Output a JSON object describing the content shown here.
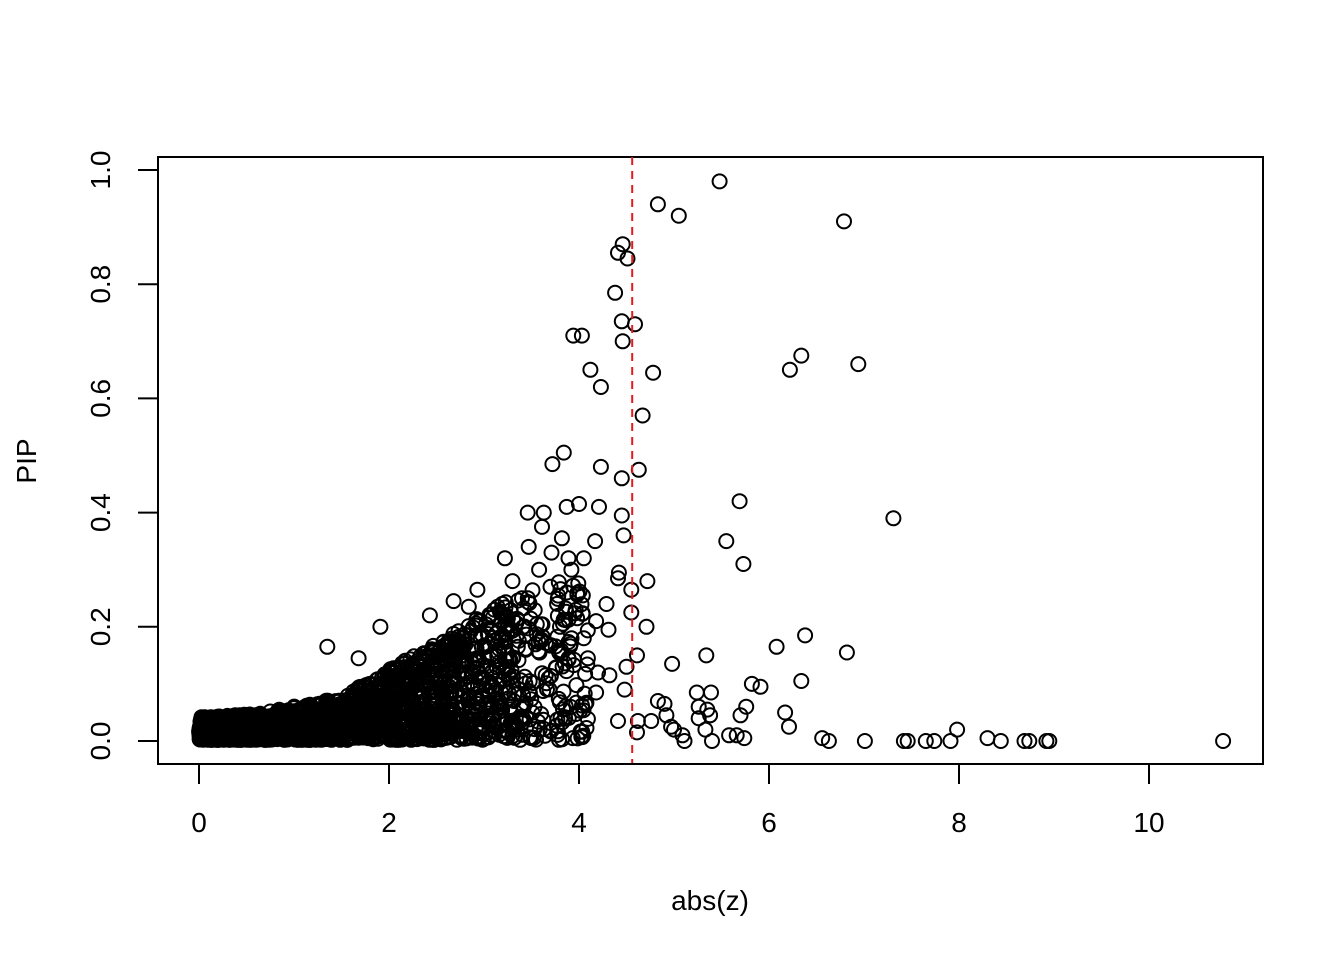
{
  "chart_data": {
    "type": "scatter",
    "title": "",
    "xlabel": "abs(z)",
    "ylabel": "PIP",
    "xlim": [
      -0.4,
      11.2
    ],
    "ylim": [
      -0.04,
      1.02
    ],
    "x_ticks": [
      0,
      2,
      4,
      6,
      8,
      10
    ],
    "x_tick_labels": [
      "0",
      "2",
      "4",
      "6",
      "8",
      "10"
    ],
    "y_ticks": [
      0.0,
      0.2,
      0.4,
      0.6,
      0.8,
      1.0
    ],
    "y_tick_labels": [
      "0.0",
      "0.2",
      "0.4",
      "0.6",
      "0.8",
      "1.0"
    ],
    "grid": false,
    "marker": "open-circle",
    "point_color": "#000000",
    "reference_line": {
      "orientation": "vertical",
      "x": 4.56,
      "style": "dashed",
      "color": "#e41a1c"
    },
    "series": [
      {
        "points": [
          [
            5.48,
            0.98
          ],
          [
            4.83,
            0.94
          ],
          [
            5.05,
            0.92
          ],
          [
            6.79,
            0.91
          ],
          [
            4.46,
            0.87
          ],
          [
            4.41,
            0.855
          ],
          [
            4.51,
            0.845
          ],
          [
            4.38,
            0.785
          ],
          [
            4.45,
            0.735
          ],
          [
            4.59,
            0.73
          ],
          [
            3.94,
            0.71
          ],
          [
            4.03,
            0.71
          ],
          [
            4.46,
            0.7
          ],
          [
            6.34,
            0.675
          ],
          [
            6.94,
            0.66
          ],
          [
            4.12,
            0.65
          ],
          [
            6.22,
            0.65
          ],
          [
            4.78,
            0.645
          ],
          [
            4.23,
            0.62
          ],
          [
            4.67,
            0.57
          ],
          [
            3.84,
            0.505
          ],
          [
            3.72,
            0.485
          ],
          [
            4.23,
            0.48
          ],
          [
            4.63,
            0.475
          ],
          [
            4.45,
            0.46
          ],
          [
            5.69,
            0.42
          ],
          [
            3.87,
            0.41
          ],
          [
            4.0,
            0.415
          ],
          [
            4.21,
            0.41
          ],
          [
            3.46,
            0.4
          ],
          [
            3.63,
            0.4
          ],
          [
            4.45,
            0.395
          ],
          [
            7.31,
            0.39
          ],
          [
            3.61,
            0.375
          ],
          [
            4.47,
            0.36
          ],
          [
            3.82,
            0.355
          ],
          [
            4.17,
            0.35
          ],
          [
            5.55,
            0.35
          ],
          [
            3.47,
            0.34
          ],
          [
            3.71,
            0.33
          ],
          [
            3.89,
            0.32
          ],
          [
            4.05,
            0.32
          ],
          [
            3.22,
            0.32
          ],
          [
            5.73,
            0.31
          ],
          [
            3.58,
            0.3
          ],
          [
            3.92,
            0.3
          ],
          [
            4.42,
            0.295
          ],
          [
            3.3,
            0.28
          ],
          [
            4.41,
            0.285
          ],
          [
            4.72,
            0.28
          ],
          [
            3.7,
            0.27
          ],
          [
            2.93,
            0.265
          ],
          [
            4.55,
            0.265
          ],
          [
            3.87,
            0.26
          ],
          [
            4.04,
            0.255
          ],
          [
            3.4,
            0.25
          ],
          [
            2.68,
            0.245
          ],
          [
            4.29,
            0.24
          ],
          [
            2.84,
            0.235
          ],
          [
            3.11,
            0.23
          ],
          [
            4.55,
            0.225
          ],
          [
            2.43,
            0.22
          ],
          [
            3.98,
            0.215
          ],
          [
            4.18,
            0.21
          ],
          [
            4.71,
            0.2
          ],
          [
            1.91,
            0.2
          ],
          [
            3.8,
            0.2
          ],
          [
            4.31,
            0.195
          ],
          [
            6.38,
            0.185
          ],
          [
            4.05,
            0.18
          ],
          [
            3.6,
            0.175
          ],
          [
            1.35,
            0.165
          ],
          [
            6.08,
            0.165
          ],
          [
            6.82,
            0.155
          ],
          [
            4.61,
            0.15
          ],
          [
            5.34,
            0.15
          ],
          [
            1.68,
            0.145
          ],
          [
            3.89,
            0.145
          ],
          [
            4.98,
            0.135
          ],
          [
            4.5,
            0.13
          ],
          [
            4.2,
            0.12
          ],
          [
            4.32,
            0.115
          ],
          [
            6.34,
            0.105
          ],
          [
            3.68,
            0.11
          ],
          [
            5.82,
            0.1
          ],
          [
            5.91,
            0.095
          ],
          [
            4.18,
            0.085
          ],
          [
            5.24,
            0.085
          ],
          [
            5.39,
            0.085
          ],
          [
            4.48,
            0.09
          ],
          [
            4.83,
            0.07
          ],
          [
            4.9,
            0.065
          ],
          [
            5.26,
            0.06
          ],
          [
            5.76,
            0.06
          ],
          [
            6.17,
            0.05
          ],
          [
            5.35,
            0.055
          ],
          [
            5.38,
            0.045
          ],
          [
            4.92,
            0.045
          ],
          [
            5.26,
            0.04
          ],
          [
            4.62,
            0.035
          ],
          [
            4.76,
            0.035
          ],
          [
            4.41,
            0.035
          ],
          [
            6.21,
            0.025
          ],
          [
            4.97,
            0.025
          ],
          [
            5.0,
            0.02
          ],
          [
            5.33,
            0.02
          ],
          [
            5.7,
            0.045
          ],
          [
            7.98,
            0.02
          ],
          [
            4.61,
            0.015
          ],
          [
            5.09,
            0.01
          ],
          [
            5.58,
            0.01
          ],
          [
            5.66,
            0.01
          ],
          [
            5.74,
            0.005
          ],
          [
            6.56,
            0.005
          ],
          [
            8.3,
            0.005
          ],
          [
            5.11,
            0.0
          ],
          [
            5.4,
            0.0
          ],
          [
            6.63,
            0.0
          ],
          [
            7.01,
            0.0
          ],
          [
            7.42,
            0.0
          ],
          [
            7.46,
            0.0
          ],
          [
            7.65,
            0.0
          ],
          [
            7.74,
            0.0
          ],
          [
            7.91,
            0.0
          ],
          [
            8.44,
            0.0
          ],
          [
            8.69,
            0.0
          ],
          [
            8.74,
            0.0
          ],
          [
            8.92,
            0.0
          ],
          [
            8.95,
            0.0
          ],
          [
            10.78,
            0.0
          ]
        ],
        "dense_regions": [
          {
            "x_range": [
              0.0,
              0.6
            ],
            "y_max": [
              0.04,
              0.045
            ],
            "count": 520
          },
          {
            "x_range": [
              0.6,
              1.5
            ],
            "y_max": [
              0.045,
              0.075
            ],
            "count": 460
          },
          {
            "x_range": [
              1.5,
              2.5
            ],
            "y_max": [
              0.075,
              0.17
            ],
            "count": 520
          },
          {
            "x_range": [
              2.5,
              3.3
            ],
            "y_max": [
              0.17,
              0.25
            ],
            "count": 380
          },
          {
            "x_range": [
              3.3,
              4.1
            ],
            "y_max": [
              0.25,
              0.3
            ],
            "count": 170
          }
        ]
      }
    ]
  }
}
